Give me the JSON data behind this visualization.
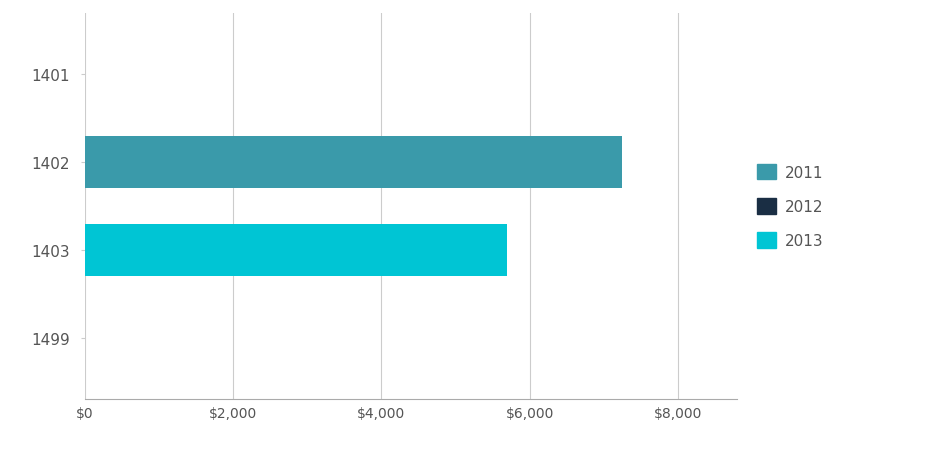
{
  "categories": [
    "1401",
    "1402",
    "1403",
    "1499"
  ],
  "years": [
    "2011",
    "2012",
    "2013"
  ],
  "colors": {
    "2011": "#3a9aaa",
    "2012": "#1a2e44",
    "2013": "#00c5d4"
  },
  "values": {
    "1401": {
      "2011": 0,
      "2012": 0,
      "2013": 0
    },
    "1402": {
      "2011": 7250,
      "2012": 0,
      "2013": 0
    },
    "1403": {
      "2011": 0,
      "2012": 0,
      "2013": 5700
    },
    "1499": {
      "2011": 0,
      "2012": 0,
      "2013": 0
    }
  },
  "xlim": [
    0,
    8800
  ],
  "xticks": [
    0,
    2000,
    4000,
    6000,
    8000
  ],
  "xtick_labels": [
    "$0",
    "$2,000",
    "$4,000",
    "$6,000",
    "$8,000"
  ],
  "background_color": "#ffffff",
  "grid_color": "#cccccc",
  "bar_height": 0.6,
  "legend_fontsize": 11,
  "tick_fontsize": 10,
  "ytick_fontsize": 11
}
